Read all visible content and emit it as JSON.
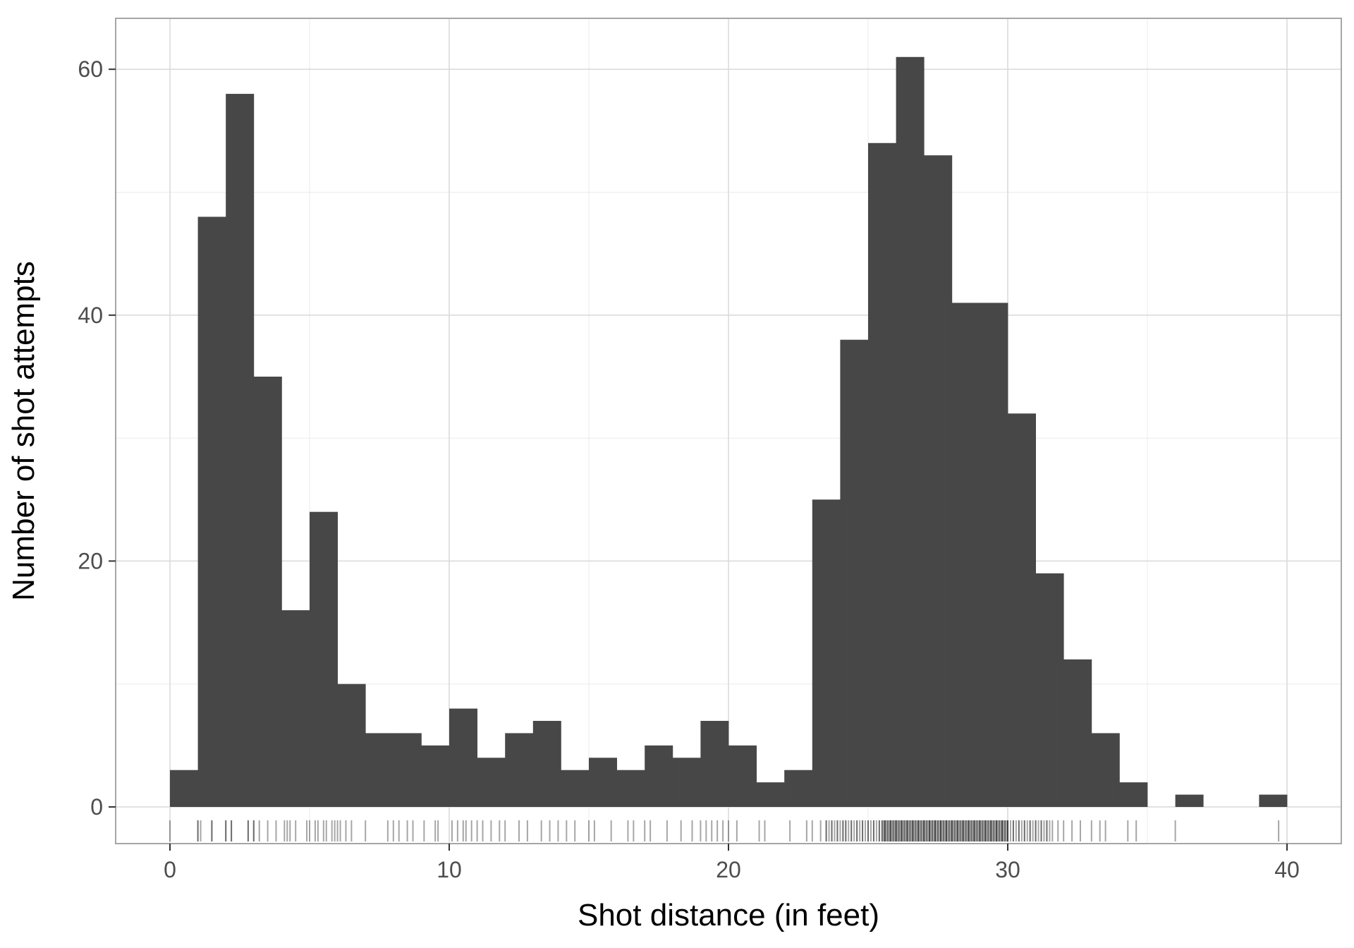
{
  "chart_data": {
    "type": "histogram",
    "title": "",
    "xlabel": "Shot distance (in feet)",
    "ylabel": "Number of shot attempts",
    "xlim": [
      -2,
      41
    ],
    "ylim": [
      0,
      64
    ],
    "x_ticks": [
      0,
      10,
      20,
      30,
      40
    ],
    "y_ticks": [
      0,
      20,
      40,
      60
    ],
    "grid": true,
    "legend": "none",
    "bin_width": 1,
    "bins": [
      {
        "x0": 0,
        "x1": 1,
        "count": 3
      },
      {
        "x0": 1,
        "x1": 2,
        "count": 48
      },
      {
        "x0": 2,
        "x1": 3,
        "count": 58
      },
      {
        "x0": 3,
        "x1": 4,
        "count": 35
      },
      {
        "x0": 4,
        "x1": 5,
        "count": 16
      },
      {
        "x0": 5,
        "x1": 6,
        "count": 24
      },
      {
        "x0": 6,
        "x1": 7,
        "count": 10
      },
      {
        "x0": 7,
        "x1": 8,
        "count": 6
      },
      {
        "x0": 8,
        "x1": 9,
        "count": 6
      },
      {
        "x0": 9,
        "x1": 10,
        "count": 5
      },
      {
        "x0": 10,
        "x1": 11,
        "count": 8
      },
      {
        "x0": 11,
        "x1": 12,
        "count": 4
      },
      {
        "x0": 12,
        "x1": 13,
        "count": 6
      },
      {
        "x0": 13,
        "x1": 14,
        "count": 7
      },
      {
        "x0": 14,
        "x1": 15,
        "count": 3
      },
      {
        "x0": 15,
        "x1": 16,
        "count": 4
      },
      {
        "x0": 16,
        "x1": 17,
        "count": 3
      },
      {
        "x0": 17,
        "x1": 18,
        "count": 5
      },
      {
        "x0": 18,
        "x1": 19,
        "count": 4
      },
      {
        "x0": 19,
        "x1": 20,
        "count": 7
      },
      {
        "x0": 20,
        "x1": 21,
        "count": 5
      },
      {
        "x0": 21,
        "x1": 22,
        "count": 2
      },
      {
        "x0": 22,
        "x1": 23,
        "count": 3
      },
      {
        "x0": 23,
        "x1": 24,
        "count": 25
      },
      {
        "x0": 24,
        "x1": 25,
        "count": 38
      },
      {
        "x0": 25,
        "x1": 26,
        "count": 54
      },
      {
        "x0": 26,
        "x1": 27,
        "count": 61
      },
      {
        "x0": 27,
        "x1": 28,
        "count": 53
      },
      {
        "x0": 28,
        "x1": 29,
        "count": 41
      },
      {
        "x0": 29,
        "x1": 30,
        "count": 41
      },
      {
        "x0": 30,
        "x1": 31,
        "count": 32
      },
      {
        "x0": 31,
        "x1": 32,
        "count": 19
      },
      {
        "x0": 32,
        "x1": 33,
        "count": 12
      },
      {
        "x0": 33,
        "x1": 34,
        "count": 6
      },
      {
        "x0": 34,
        "x1": 35,
        "count": 2
      },
      {
        "x0": 35,
        "x1": 36,
        "count": 0
      },
      {
        "x0": 36,
        "x1": 37,
        "count": 1
      },
      {
        "x0": 37,
        "x1": 38,
        "count": 0
      },
      {
        "x0": 38,
        "x1": 39,
        "count": 0
      },
      {
        "x0": 39,
        "x1": 40,
        "count": 1
      }
    ],
    "rug": {
      "opacity": 0.35,
      "values": [
        0,
        1,
        1,
        1.1,
        1.5,
        1.5,
        2,
        2,
        2.2,
        2.2,
        2.8,
        2.8,
        3,
        3,
        3.2,
        3.5,
        3.8,
        4.1,
        4.2,
        4.3,
        4.5,
        4.9,
        5,
        5.2,
        5.3,
        5.5,
        5.6,
        5.8,
        5.9,
        6,
        6.1,
        6.3,
        6.5,
        7,
        7.8,
        8,
        8.2,
        8.5,
        8.7,
        9.1,
        9.5,
        9.6,
        10.1,
        10.3,
        10.5,
        10.6,
        10.8,
        11,
        11.2,
        11.5,
        11.8,
        12,
        12.5,
        12.8,
        13.3,
        13.6,
        13.9,
        14.2,
        14.5,
        15,
        15.2,
        15.8,
        16.4,
        16.6,
        17,
        17.2,
        17.8,
        18.3,
        18.7,
        19,
        19.2,
        19.4,
        19.6,
        19.8,
        20,
        20.3,
        21.1,
        21.3,
        22.2,
        22.8,
        23,
        23.3,
        23.5,
        23.7,
        23.9,
        24.1,
        24.2,
        24.4,
        24.6,
        24.8,
        25,
        25.2,
        25.4,
        25.6,
        25.8,
        26,
        26.2,
        26.4,
        26.6,
        26.8,
        27,
        27.2,
        27.4,
        27.6,
        27.8,
        28,
        28.2,
        28.4,
        28.6,
        28.8,
        29,
        29.2,
        29.4,
        29.6,
        29.8,
        30,
        30.2,
        30.4,
        30.6,
        30.8,
        31,
        31.2,
        31.4,
        31.6,
        31.8,
        32,
        32.3,
        32.6,
        33,
        33.3,
        33.5,
        34.3,
        34.6,
        36,
        39.7
      ],
      "dense_ranges": [
        [
          23.5,
          31.5,
          0.1
        ],
        [
          25.5,
          30,
          0.05
        ]
      ]
    },
    "colors": {
      "bar": "#474747",
      "rug": "#000000",
      "grid_major": "#d9d9d9",
      "grid_minor": "#ebebeb",
      "panel_border": "#a6a6a6",
      "tick_text": "#4d4d4d"
    }
  }
}
